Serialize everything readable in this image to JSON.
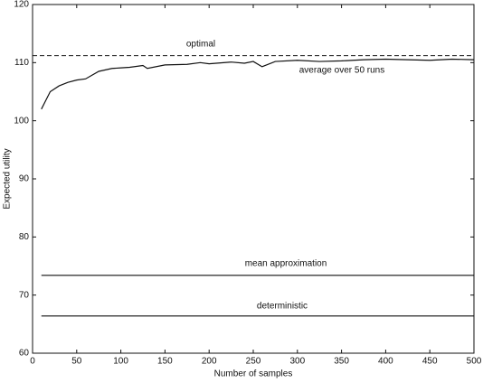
{
  "chart_data": {
    "type": "line",
    "xlabel": "Number of samples",
    "ylabel": "Expected utility",
    "xlim": [
      0,
      500
    ],
    "ylim": [
      60,
      120
    ],
    "xticks": [
      0,
      50,
      100,
      150,
      200,
      250,
      300,
      350,
      400,
      450,
      500
    ],
    "yticks": [
      60,
      70,
      80,
      90,
      100,
      110,
      120
    ],
    "series": [
      {
        "name": "optimal",
        "color": "#111111",
        "dashed": true,
        "x": [
          0,
          500
        ],
        "values": [
          111.2,
          111.2
        ]
      },
      {
        "name": "average over 50 runs",
        "color": "#111111",
        "dashed": false,
        "x": [
          10,
          15,
          20,
          30,
          40,
          50,
          60,
          75,
          90,
          100,
          110,
          125,
          130,
          150,
          175,
          190,
          200,
          225,
          240,
          250,
          260,
          275,
          300,
          325,
          350,
          375,
          400,
          425,
          450,
          475,
          500
        ],
        "values": [
          102,
          103.5,
          105,
          106,
          106.6,
          107,
          107.2,
          108.5,
          109,
          109.1,
          109.2,
          109.5,
          109,
          109.6,
          109.7,
          110,
          109.8,
          110.1,
          109.9,
          110.2,
          109.3,
          110.2,
          110.4,
          110.2,
          110.3,
          110.5,
          110.6,
          110.5,
          110.4,
          110.6,
          110.5
        ]
      },
      {
        "name": "mean approximation",
        "color": "#111111",
        "dashed": false,
        "x": [
          10,
          500
        ],
        "values": [
          73.4,
          73.4
        ]
      },
      {
        "name": "deterministic",
        "color": "#111111",
        "dashed": false,
        "x": [
          10,
          500
        ],
        "values": [
          66.4,
          66.4
        ]
      }
    ]
  }
}
